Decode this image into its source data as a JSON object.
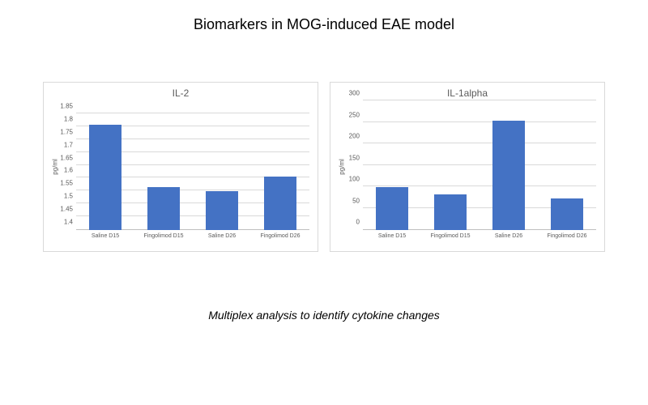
{
  "page_title": "Biomarkers in MOG-induced EAE model",
  "caption": "Multiplex analysis to identify cytokine changes",
  "bar_color": "#4472c4",
  "background_color": "#ffffff",
  "grid_color": "#d9d9d9",
  "axis_color": "#bfbfbf",
  "text_color": "#5a5a5a",
  "title_fontsize": 18,
  "chart_title_fontsize": 12,
  "tick_fontsize": 8,
  "xlabel_fontsize": 7,
  "caption_fontsize": 14,
  "bar_width_pct": 56,
  "charts": [
    {
      "type": "bar",
      "title": "IL-2",
      "ylabel": "pg/ml",
      "categories": [
        "Saline D15",
        "Fingolimod D15",
        "Saline D26",
        "Fingolimod D26"
      ],
      "values": [
        1.805,
        1.565,
        1.55,
        1.605
      ],
      "ylim": [
        1.4,
        1.9
      ],
      "ytick_step": 0.05,
      "yticks": [
        "1.4",
        "1.45",
        "1.5",
        "1.55",
        "1.6",
        "1.65",
        "1.7",
        "1.75",
        "1.8",
        "1.85"
      ],
      "bar_colors": [
        "#4472c4",
        "#4472c4",
        "#4472c4",
        "#4472c4"
      ]
    },
    {
      "type": "bar",
      "title": "IL-1alpha",
      "ylabel": "pg/ml",
      "categories": [
        "Saline D15",
        "Fingolimod D15",
        "Saline D26",
        "Fingolimod D26"
      ],
      "values": [
        100,
        83,
        253,
        73
      ],
      "ylim": [
        0,
        300
      ],
      "ytick_step": 50,
      "yticks": [
        "0",
        "50",
        "100",
        "150",
        "200",
        "250",
        "300"
      ],
      "bar_colors": [
        "#4472c4",
        "#4472c4",
        "#4472c4",
        "#4472c4"
      ]
    }
  ]
}
